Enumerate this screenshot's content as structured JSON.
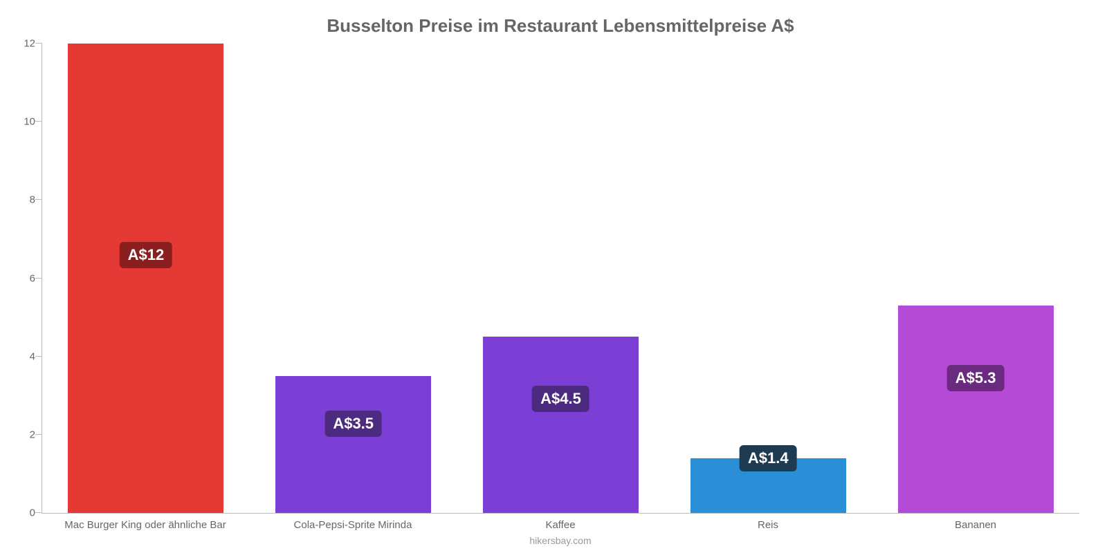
{
  "chart": {
    "type": "bar",
    "title": "Busselton Preise im Restaurant Lebensmittelpreise A$",
    "title_fontsize": 26,
    "title_color": "#666666",
    "background_color": "#ffffff",
    "axis_color": "#bbbbbb",
    "label_color": "#666666",
    "label_fontsize": 15,
    "ylim": [
      0,
      12
    ],
    "ytick_step": 2,
    "yticks": [
      0,
      2,
      4,
      6,
      8,
      10,
      12
    ],
    "categories": [
      "Mac Burger King oder ähnliche Bar",
      "Cola-Pepsi-Sprite Mirinda",
      "Kaffee",
      "Reis",
      "Bananen"
    ],
    "values": [
      12,
      3.5,
      4.5,
      1.4,
      5.3
    ],
    "display_values": [
      "A$12",
      "A$3.5",
      "A$4.5",
      "A$1.4",
      "A$5.3"
    ],
    "bar_colors": [
      "#e53935",
      "#7b3fd6",
      "#7b3fd6",
      "#2a8fd6",
      "#b54ad6"
    ],
    "badge_colors": [
      "#8b1e1e",
      "#4b2a80",
      "#4b2a80",
      "#1f3b52",
      "#6a2a80"
    ],
    "badge_anchor_pct": [
      55,
      65,
      65,
      100,
      65
    ],
    "badge_text_color": "#ffffff",
    "bar_width_pct": 75,
    "credit": "hikersbay.com",
    "credit_color": "#999999"
  }
}
